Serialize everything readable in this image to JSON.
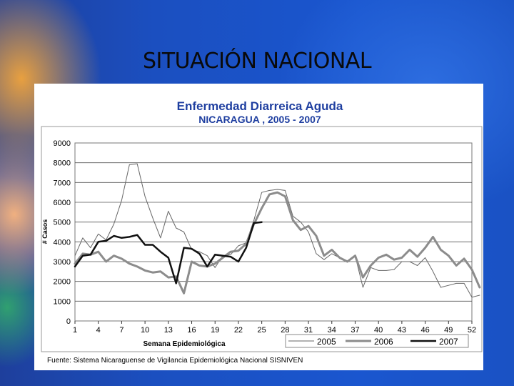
{
  "slide": {
    "title": "SITUACIÓN NACIONAL"
  },
  "colors": {
    "background": "#1a52c4",
    "panel": "#ffffff",
    "title_blue": "#1f3fa0"
  },
  "chart_data": {
    "type": "line",
    "title": "Enfermedad Diarreica Aguda",
    "subtitle": "NICARAGUA , 2005 - 2007",
    "xlabel": "Semana Epidemiológica",
    "ylabel": "# Casos",
    "source": "Fuente: Sistema Nicaraguense de Vigilancia Epidemiológica Nacional SISNIVEN",
    "xlim": [
      1,
      52
    ],
    "ylim": [
      0,
      9000
    ],
    "x_ticks": [
      1,
      4,
      7,
      10,
      13,
      16,
      19,
      22,
      25,
      28,
      31,
      34,
      37,
      40,
      43,
      46,
      49,
      52
    ],
    "y_ticks": [
      0,
      1000,
      2000,
      3000,
      4000,
      5000,
      6000,
      7000,
      8000,
      9000
    ],
    "grid": true,
    "legend_position": "bottom-right",
    "series": [
      {
        "name": "2005",
        "color": "#666666",
        "width": 1,
        "values": [
          3300,
          4200,
          3700,
          4400,
          4100,
          4900,
          6100,
          7900,
          7950,
          6300,
          5200,
          4200,
          5550,
          4700,
          4500,
          3600,
          3500,
          3300,
          2700,
          3300,
          3350,
          3800,
          3950,
          5100,
          6500,
          6600,
          6650,
          6600,
          5300,
          5000,
          4500,
          3400,
          3100,
          3400,
          3200,
          3000,
          3300,
          1700,
          2700,
          2550,
          2550,
          2600,
          3000,
          3000,
          2800,
          3200,
          2500,
          1700,
          1800,
          1900,
          1900,
          1200,
          1300
        ]
      },
      {
        "name": "2006",
        "color": "#8c8c8c",
        "width": 3,
        "values": [
          2900,
          3400,
          3350,
          3500,
          3000,
          3300,
          3150,
          2900,
          2750,
          2550,
          2450,
          2500,
          2200,
          2250,
          1400,
          3000,
          2800,
          2750,
          2900,
          3200,
          3500,
          3550,
          3900,
          4900,
          5700,
          6400,
          6500,
          6300,
          5100,
          4600,
          4800,
          4300,
          3300,
          3600,
          3200,
          3000,
          3300,
          2200,
          2800,
          3200,
          3350,
          3100,
          3200,
          3600,
          3250,
          3700,
          4250,
          3600,
          3300,
          2800,
          3150,
          2600,
          1700
        ]
      },
      {
        "name": "2007",
        "color": "#111111",
        "width": 2.5,
        "values": [
          2750,
          3300,
          3350,
          4000,
          4050,
          4300,
          4200,
          4250,
          4350,
          3850,
          3850,
          3500,
          3200,
          1900,
          3700,
          3650,
          3400,
          2750,
          3350,
          3300,
          3250,
          3000,
          3700,
          4950,
          5000
        ]
      }
    ]
  }
}
